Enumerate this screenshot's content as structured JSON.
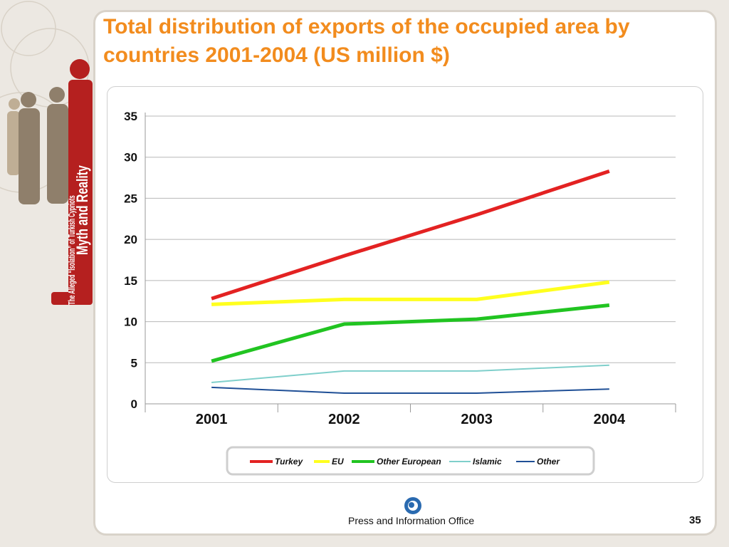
{
  "slide": {
    "title": "Total distribution of exports of the occupied area by countries 2001-2004 (US million $)",
    "side_title_main": "Myth and Reality",
    "side_title_sub": "The Alleged “Isolation” of Turkish Cypriots",
    "footer_text": "Press and Information Office",
    "page_number": "35"
  },
  "colors": {
    "title": "#f28c1e",
    "side_banner": "#b5201f",
    "turkey": "#e32222",
    "eu": "#ffff1e",
    "other_european": "#21c421",
    "islamic": "#7fcfcb",
    "other": "#1f4f96"
  },
  "chart_data": {
    "type": "line",
    "title": "",
    "xlabel": "",
    "ylabel": "",
    "categories": [
      "2001",
      "2002",
      "2003",
      "2004"
    ],
    "ylim": [
      0,
      35
    ],
    "yticks": [
      "0",
      "5",
      "10",
      "15",
      "20",
      "25",
      "30",
      "35"
    ],
    "grid": true,
    "legend_position": "bottom",
    "series": [
      {
        "name": "Turkey",
        "values": [
          12.8,
          18.0,
          23.0,
          28.3
        ],
        "color": "#e32222"
      },
      {
        "name": "EU",
        "values": [
          12.1,
          12.7,
          12.7,
          14.8
        ],
        "color": "#ffff1e"
      },
      {
        "name": "Other European",
        "values": [
          5.2,
          9.7,
          10.3,
          12.0
        ],
        "color": "#21c421"
      },
      {
        "name": "Islamic",
        "values": [
          2.6,
          4.0,
          4.0,
          4.7
        ],
        "color": "#7fcfcb"
      },
      {
        "name": "Other",
        "values": [
          2.0,
          1.3,
          1.3,
          1.8
        ],
        "color": "#1f4f96"
      }
    ]
  }
}
